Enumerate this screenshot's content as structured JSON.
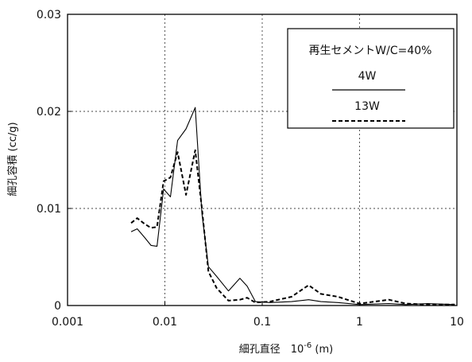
{
  "chart_data": {
    "type": "line",
    "title": "",
    "xlabel": "細孔直径　10",
    "xlabel_exp": "-6",
    "xlabel_unit": " (m)",
    "ylabel": "細孔容積 (cc/g)",
    "xscale": "log",
    "xlim": [
      0.001,
      10
    ],
    "ylim": [
      0,
      0.03
    ],
    "grid": "dotted",
    "x_ticks": [
      "0.001",
      "0.01",
      "0.1",
      "1",
      "10"
    ],
    "y_ticks": [
      "0",
      "0.01",
      "0.02",
      "0.03"
    ],
    "legend": {
      "placement": "top-right",
      "title": "再生セメントW/C=40%"
    },
    "series": [
      {
        "name": "4W",
        "style": "solid",
        "color": "#000000",
        "points": [
          [
            0.0045,
            0.0076
          ],
          [
            0.0052,
            0.0079
          ],
          [
            0.0062,
            0.007
          ],
          [
            0.0072,
            0.0062
          ],
          [
            0.0083,
            0.0061
          ],
          [
            0.0097,
            0.012
          ],
          [
            0.0114,
            0.0112
          ],
          [
            0.0135,
            0.017
          ],
          [
            0.0165,
            0.0182
          ],
          [
            0.0205,
            0.0204
          ],
          [
            0.024,
            0.0095
          ],
          [
            0.028,
            0.004
          ],
          [
            0.034,
            0.003
          ],
          [
            0.045,
            0.0015
          ],
          [
            0.059,
            0.0028
          ],
          [
            0.07,
            0.002
          ],
          [
            0.085,
            0.0004
          ],
          [
            0.12,
            0.0003
          ],
          [
            0.2,
            0.0004
          ],
          [
            0.3,
            0.0006
          ],
          [
            0.4,
            0.0004
          ],
          [
            0.6,
            0.0003
          ],
          [
            1.0,
            0.0001
          ],
          [
            2.0,
            0.0002
          ],
          [
            3.0,
            0.0001
          ],
          [
            5.0,
            0.0002
          ],
          [
            9.5,
            0.0001
          ]
        ]
      },
      {
        "name": "13W",
        "style": "dashed",
        "color": "#000000",
        "points": [
          [
            0.0045,
            0.0085
          ],
          [
            0.0052,
            0.009
          ],
          [
            0.0062,
            0.0084
          ],
          [
            0.0072,
            0.008
          ],
          [
            0.0083,
            0.0081
          ],
          [
            0.0097,
            0.0128
          ],
          [
            0.0114,
            0.0132
          ],
          [
            0.0135,
            0.0158
          ],
          [
            0.0165,
            0.0114
          ],
          [
            0.0205,
            0.016
          ],
          [
            0.024,
            0.01
          ],
          [
            0.028,
            0.0035
          ],
          [
            0.034,
            0.0018
          ],
          [
            0.045,
            0.0005
          ],
          [
            0.059,
            0.0006
          ],
          [
            0.07,
            0.0008
          ],
          [
            0.085,
            0.0003
          ],
          [
            0.12,
            0.0004
          ],
          [
            0.2,
            0.0009
          ],
          [
            0.3,
            0.0021
          ],
          [
            0.4,
            0.0012
          ],
          [
            0.6,
            0.0009
          ],
          [
            1.0,
            0.0002
          ],
          [
            2.0,
            0.0006
          ],
          [
            3.0,
            0.0002
          ],
          [
            5.0,
            0.0001
          ],
          [
            9.5,
            0.0001
          ]
        ]
      }
    ]
  }
}
